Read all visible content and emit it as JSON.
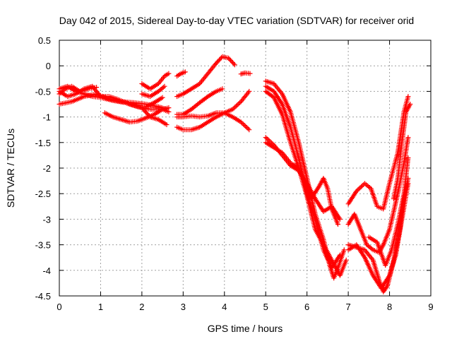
{
  "chart_data": {
    "type": "scatter",
    "title": "Day 042 of 2015, Sidereal Day-to-day VTEC variation (SDTVAR) for receiver orid",
    "xlabel": "GPS time / hours",
    "ylabel": "SDTVAR / TECUs",
    "xlim": [
      0,
      9
    ],
    "ylim": [
      -4.5,
      0.5
    ],
    "xticks": [
      "0",
      "1",
      "2",
      "3",
      "4",
      "5",
      "6",
      "7",
      "8",
      "9"
    ],
    "yticks": [
      "0.5",
      "0",
      "-0.5",
      "-1",
      "-1.5",
      "-2",
      "-2.5",
      "-3",
      "-3.5",
      "-4",
      "-4.5"
    ],
    "grid": true,
    "marker": "+",
    "color": "#ff0000",
    "series": [
      {
        "points": [
          [
            0.0,
            -0.75
          ],
          [
            0.3,
            -0.7
          ],
          [
            0.6,
            -0.6
          ],
          [
            0.9,
            -0.55
          ],
          [
            1.2,
            -0.65
          ],
          [
            1.5,
            -0.7
          ],
          [
            1.8,
            -0.72
          ],
          [
            2.1,
            -0.75
          ],
          [
            2.4,
            -0.8
          ],
          [
            2.6,
            -0.85
          ]
        ]
      },
      {
        "points": [
          [
            0.0,
            -0.45
          ],
          [
            0.2,
            -0.4
          ],
          [
            0.4,
            -0.5
          ],
          [
            0.6,
            -0.55
          ],
          [
            0.8,
            -0.6
          ],
          [
            1.0,
            -0.62
          ],
          [
            1.3,
            -0.68
          ],
          [
            1.6,
            -0.72
          ],
          [
            1.9,
            -0.8
          ],
          [
            2.2,
            -0.85
          ],
          [
            2.5,
            -0.85
          ],
          [
            2.65,
            -0.9
          ]
        ]
      },
      {
        "points": [
          [
            0.0,
            -0.5
          ],
          [
            0.2,
            -0.6
          ],
          [
            0.4,
            -0.55
          ],
          [
            0.6,
            -0.45
          ],
          [
            0.8,
            -0.4
          ],
          [
            1.0,
            -0.6
          ],
          [
            1.2,
            -0.6
          ],
          [
            1.4,
            -0.65
          ],
          [
            1.7,
            -0.75
          ],
          [
            2.0,
            -0.82
          ],
          [
            2.2,
            -1.0
          ],
          [
            2.4,
            -1.05
          ],
          [
            2.6,
            -1.15
          ]
        ]
      },
      {
        "points": [
          [
            0.0,
            -0.55
          ],
          [
            0.15,
            -0.45
          ],
          [
            0.3,
            -0.4
          ],
          [
            0.5,
            -0.5
          ],
          [
            0.7,
            -0.45
          ],
          [
            0.9,
            -0.42
          ]
        ]
      },
      {
        "points": [
          [
            1.1,
            -0.92
          ],
          [
            1.3,
            -1.0
          ],
          [
            1.5,
            -1.05
          ],
          [
            1.7,
            -1.1
          ],
          [
            1.9,
            -1.08
          ],
          [
            2.1,
            -1.02
          ],
          [
            2.3,
            -0.95
          ],
          [
            2.5,
            -0.85
          ],
          [
            2.65,
            -0.82
          ]
        ]
      },
      {
        "points": [
          [
            2.0,
            -0.35
          ],
          [
            2.2,
            -0.45
          ],
          [
            2.4,
            -0.35
          ],
          [
            2.55,
            -0.2
          ],
          [
            2.65,
            -0.15
          ]
        ]
      },
      {
        "points": [
          [
            2.0,
            -0.55
          ],
          [
            2.2,
            -0.6
          ],
          [
            2.4,
            -0.5
          ],
          [
            2.55,
            -0.4
          ]
        ]
      },
      {
        "points": [
          [
            2.1,
            -0.8
          ],
          [
            2.3,
            -0.72
          ],
          [
            2.5,
            -0.62
          ]
        ]
      },
      {
        "points": [
          [
            2.85,
            -0.2
          ],
          [
            2.95,
            -0.15
          ],
          [
            3.05,
            -0.12
          ]
        ]
      },
      {
        "points": [
          [
            2.85,
            -0.6
          ],
          [
            3.0,
            -0.55
          ],
          [
            3.2,
            -0.45
          ],
          [
            3.4,
            -0.35
          ],
          [
            3.6,
            -0.15
          ],
          [
            3.8,
            0.05
          ],
          [
            3.95,
            0.18
          ],
          [
            4.1,
            0.15
          ],
          [
            4.25,
            0.02
          ]
        ]
      },
      {
        "points": [
          [
            2.85,
            -0.95
          ],
          [
            3.0,
            -0.95
          ],
          [
            3.2,
            -0.85
          ],
          [
            3.4,
            -0.72
          ],
          [
            3.6,
            -0.6
          ],
          [
            3.8,
            -0.5
          ],
          [
            3.95,
            -0.45
          ]
        ]
      },
      {
        "points": [
          [
            2.85,
            -1.0
          ],
          [
            3.0,
            -1.0
          ],
          [
            3.2,
            -0.98
          ],
          [
            3.4,
            -1.0
          ],
          [
            3.6,
            -0.98
          ],
          [
            3.8,
            -0.92
          ],
          [
            4.0,
            -0.92
          ],
          [
            4.2,
            -1.0
          ],
          [
            4.4,
            -1.1
          ],
          [
            4.6,
            -1.25
          ]
        ]
      },
      {
        "points": [
          [
            2.85,
            -1.2
          ],
          [
            3.0,
            -1.25
          ],
          [
            3.2,
            -1.25
          ],
          [
            3.4,
            -1.2
          ],
          [
            3.6,
            -1.1
          ],
          [
            3.8,
            -1.0
          ],
          [
            4.0,
            -0.92
          ],
          [
            4.2,
            -0.85
          ],
          [
            4.4,
            -0.7
          ],
          [
            4.6,
            -0.5
          ]
        ]
      },
      {
        "points": [
          [
            4.4,
            -0.16
          ],
          [
            4.5,
            -0.14
          ],
          [
            4.62,
            -0.15
          ]
        ]
      },
      {
        "points": [
          [
            5.0,
            -0.3
          ],
          [
            5.2,
            -0.35
          ],
          [
            5.4,
            -0.55
          ],
          [
            5.6,
            -0.9
          ],
          [
            5.8,
            -1.5
          ],
          [
            6.0,
            -2.2
          ],
          [
            6.2,
            -2.9
          ],
          [
            6.4,
            -3.4
          ],
          [
            6.55,
            -3.9
          ],
          [
            6.65,
            -4.15
          ],
          [
            6.75,
            -3.95
          ],
          [
            6.9,
            -3.6
          ]
        ]
      },
      {
        "points": [
          [
            5.0,
            -0.4
          ],
          [
            5.2,
            -0.5
          ],
          [
            5.4,
            -0.75
          ],
          [
            5.6,
            -1.2
          ],
          [
            5.8,
            -1.8
          ],
          [
            6.0,
            -2.5
          ],
          [
            6.2,
            -3.0
          ],
          [
            6.4,
            -3.6
          ],
          [
            6.6,
            -3.95
          ],
          [
            6.8,
            -3.7
          ]
        ]
      },
      {
        "points": [
          [
            5.0,
            -0.5
          ],
          [
            5.2,
            -0.62
          ],
          [
            5.4,
            -0.95
          ],
          [
            5.6,
            -1.5
          ],
          [
            5.8,
            -2.0
          ],
          [
            6.0,
            -2.55
          ],
          [
            6.2,
            -3.2
          ],
          [
            6.4,
            -3.5
          ],
          [
            6.6,
            -3.8
          ],
          [
            6.8,
            -4.1
          ],
          [
            6.95,
            -3.8
          ]
        ]
      },
      {
        "points": [
          [
            5.0,
            -1.4
          ],
          [
            5.2,
            -1.55
          ],
          [
            5.4,
            -1.75
          ],
          [
            5.6,
            -1.95
          ],
          [
            5.8,
            -2.05
          ],
          [
            6.0,
            -2.3
          ],
          [
            6.2,
            -2.6
          ],
          [
            6.4,
            -2.85
          ],
          [
            6.6,
            -2.75
          ],
          [
            6.8,
            -3.0
          ]
        ]
      },
      {
        "points": [
          [
            5.0,
            -1.5
          ],
          [
            5.2,
            -1.6
          ],
          [
            5.4,
            -1.7
          ],
          [
            5.6,
            -1.9
          ],
          [
            5.8,
            -2.0
          ],
          [
            6.0,
            -2.4
          ],
          [
            6.1,
            -2.6
          ],
          [
            6.3,
            -2.35
          ],
          [
            6.4,
            -2.2
          ],
          [
            6.5,
            -2.4
          ],
          [
            6.6,
            -2.8
          ],
          [
            6.75,
            -3.1
          ]
        ]
      },
      {
        "points": [
          [
            7.0,
            -2.7
          ],
          [
            7.2,
            -2.45
          ],
          [
            7.4,
            -2.3
          ],
          [
            7.55,
            -2.4
          ],
          [
            7.7,
            -2.75
          ],
          [
            7.85,
            -2.8
          ],
          [
            8.0,
            -2.3
          ],
          [
            8.2,
            -1.7
          ],
          [
            8.35,
            -0.9
          ],
          [
            8.45,
            -0.6
          ]
        ]
      },
      {
        "points": [
          [
            7.0,
            -3.1
          ],
          [
            7.15,
            -2.9
          ],
          [
            7.3,
            -3.2
          ],
          [
            7.45,
            -3.5
          ],
          [
            7.6,
            -3.6
          ],
          [
            7.75,
            -3.65
          ],
          [
            7.85,
            -3.5
          ],
          [
            8.0,
            -3.2
          ],
          [
            8.2,
            -2.5
          ],
          [
            8.35,
            -1.9
          ],
          [
            8.45,
            -1.4
          ]
        ]
      },
      {
        "points": [
          [
            7.0,
            -3.5
          ],
          [
            7.2,
            -3.55
          ],
          [
            7.4,
            -3.6
          ],
          [
            7.6,
            -3.8
          ],
          [
            7.75,
            -4.2
          ],
          [
            7.85,
            -4.42
          ],
          [
            7.95,
            -4.3
          ],
          [
            8.1,
            -3.8
          ],
          [
            8.25,
            -3.2
          ],
          [
            8.35,
            -2.6
          ],
          [
            8.45,
            -2.2
          ]
        ]
      },
      {
        "points": [
          [
            7.0,
            -3.6
          ],
          [
            7.2,
            -3.5
          ],
          [
            7.4,
            -3.75
          ],
          [
            7.6,
            -4.1
          ],
          [
            7.8,
            -4.35
          ],
          [
            8.0,
            -4.1
          ],
          [
            8.15,
            -3.7
          ],
          [
            8.3,
            -3.0
          ],
          [
            8.45,
            -2.3
          ]
        ]
      },
      {
        "points": [
          [
            7.5,
            -3.35
          ],
          [
            7.7,
            -3.45
          ],
          [
            7.9,
            -3.9
          ],
          [
            8.05,
            -3.6
          ],
          [
            8.2,
            -3.1
          ],
          [
            8.35,
            -2.5
          ],
          [
            8.45,
            -1.8
          ]
        ]
      },
      {
        "points": [
          [
            8.1,
            -2.6
          ],
          [
            8.2,
            -2.2
          ],
          [
            8.3,
            -1.5
          ],
          [
            8.4,
            -0.9
          ],
          [
            8.5,
            -0.75
          ]
        ]
      }
    ]
  }
}
